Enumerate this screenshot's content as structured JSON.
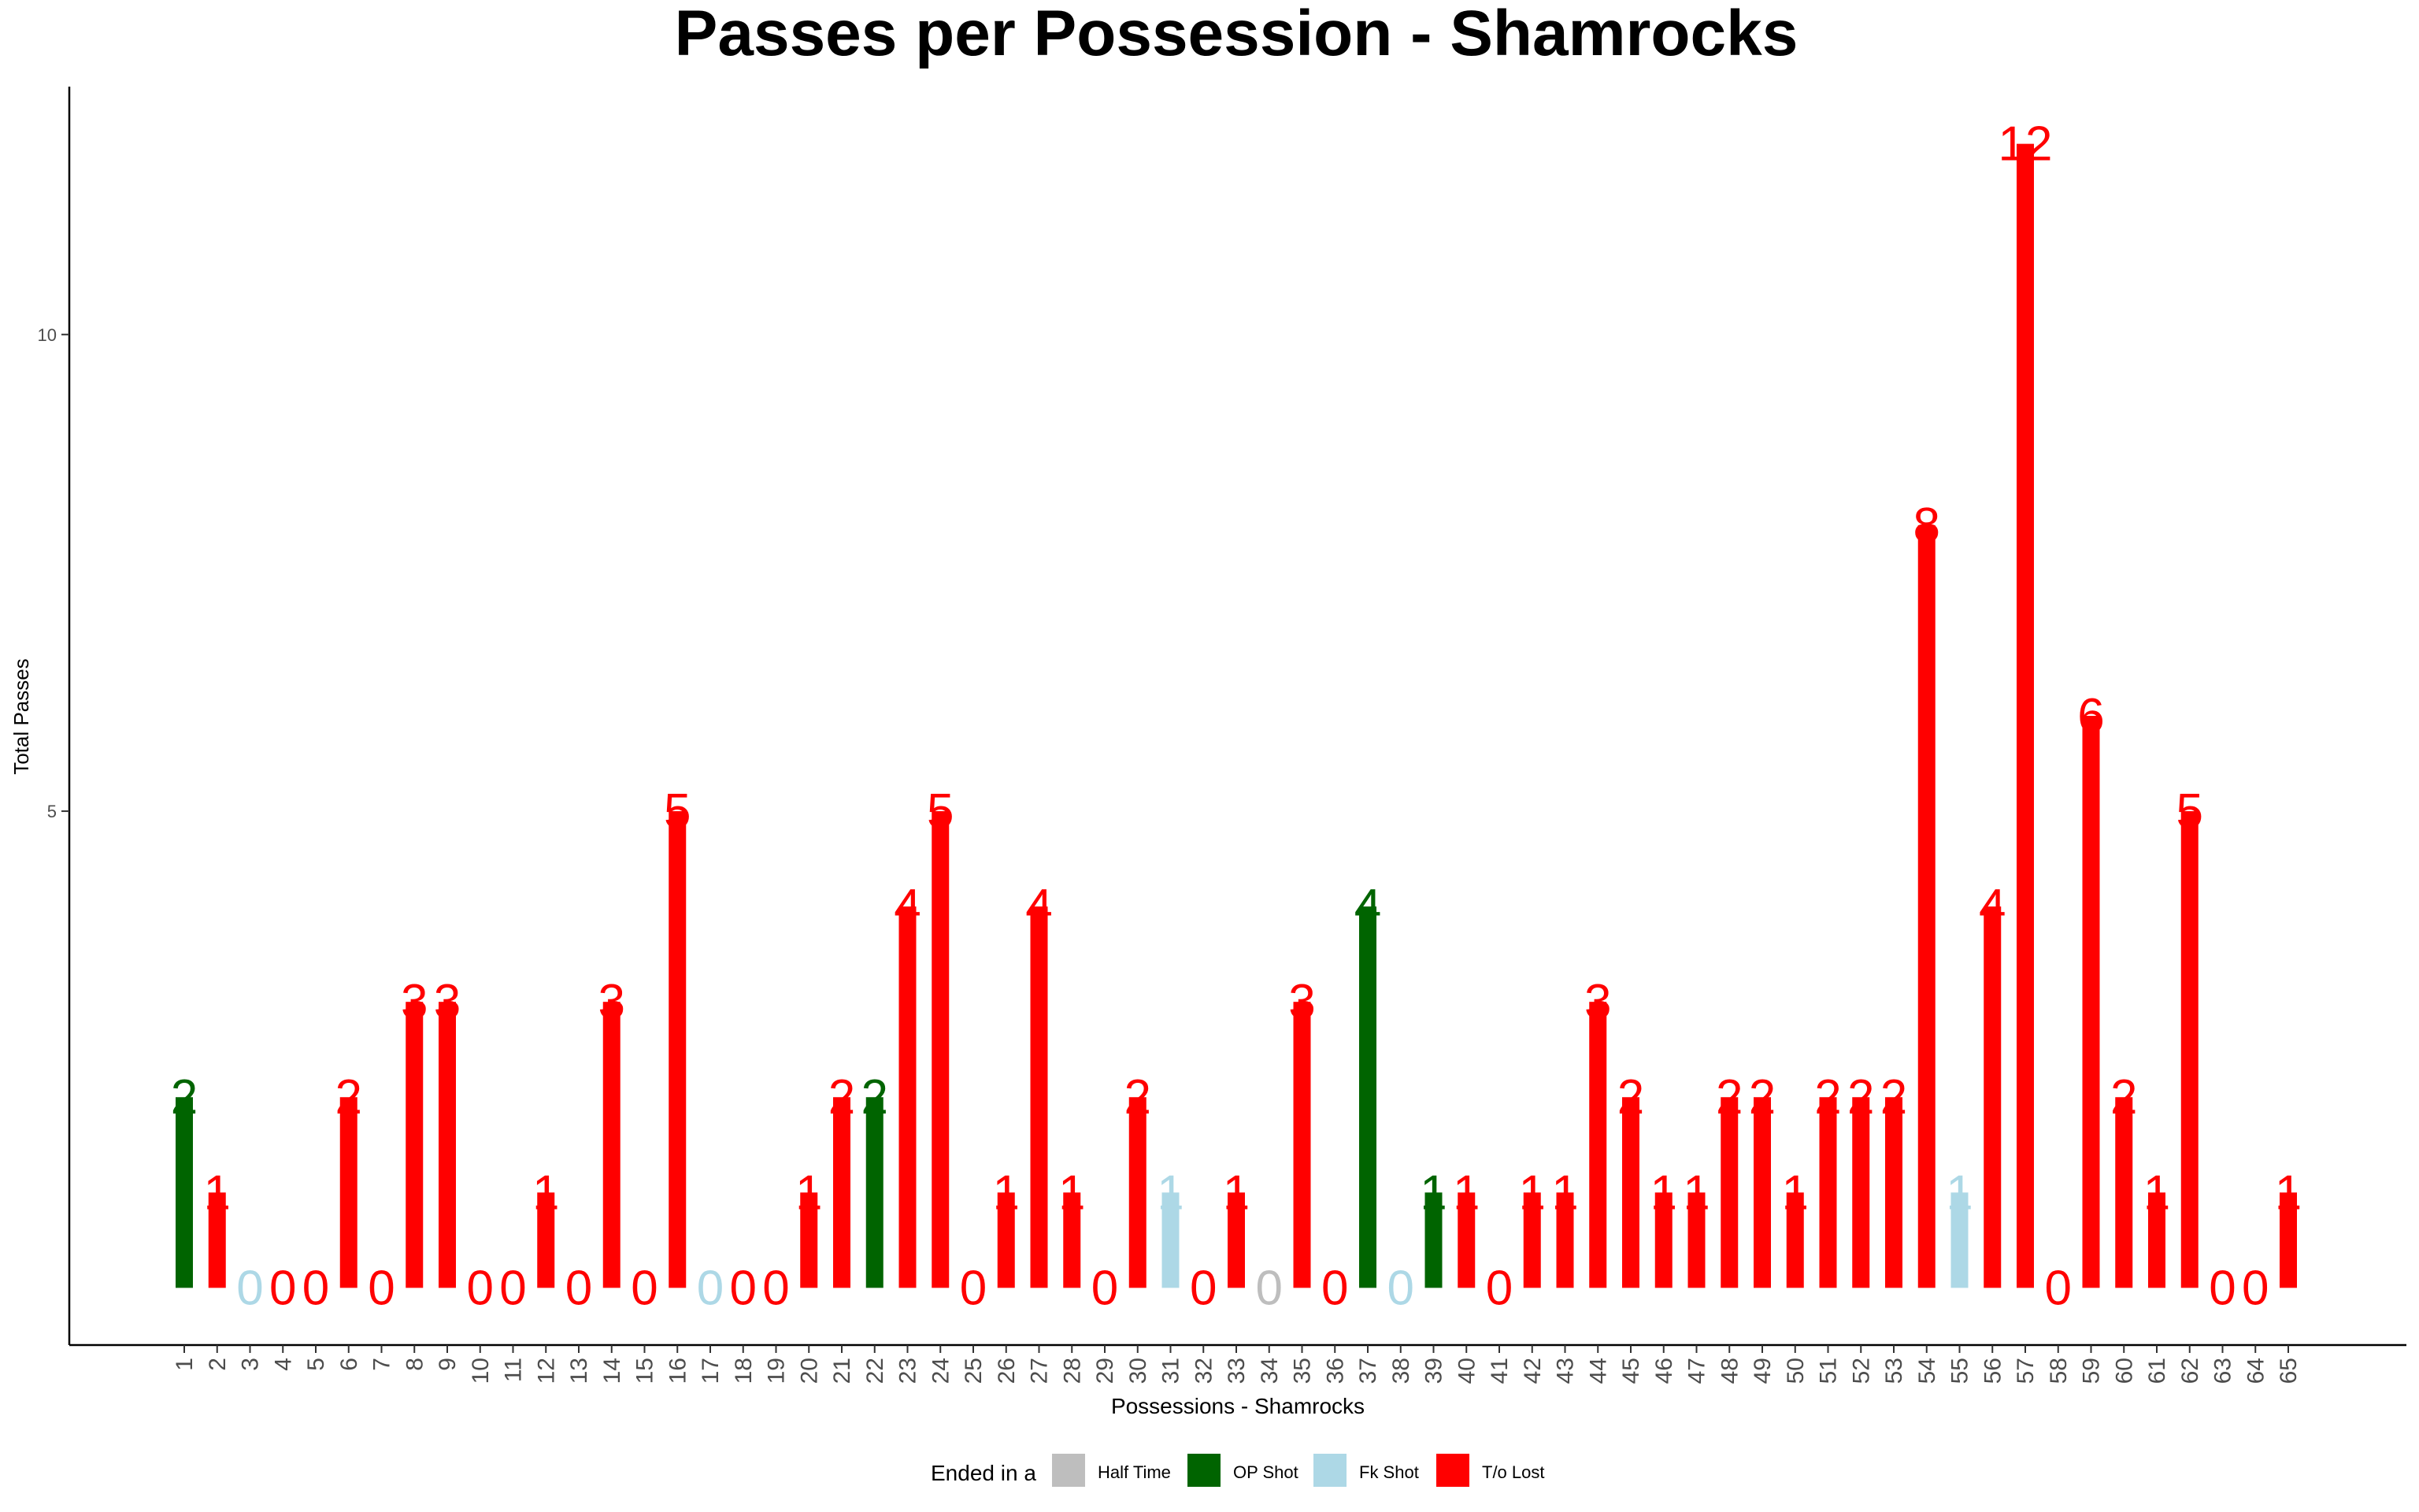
{
  "chart_data": {
    "type": "bar",
    "title": "Passes per Possession - Shamrocks",
    "xlabel": "Possessions - Shamrocks",
    "ylabel": "Total Passes",
    "ylim": [
      -0.6,
      12.6
    ],
    "yticks": [
      5,
      10
    ],
    "grid": false,
    "legend": {
      "title": "Ended in a",
      "placement": "bottom",
      "entries": [
        {
          "key": "half_time",
          "label": "Half Time",
          "color": "#BEBEBE"
        },
        {
          "key": "op_shot",
          "label": "OP Shot",
          "color": "#006400"
        },
        {
          "key": "fk_shot",
          "label": "Fk Shot",
          "color": "#ADD8E6"
        },
        {
          "key": "to_lost",
          "label": "T/o Lost",
          "color": "#FF0000"
        }
      ]
    },
    "categories": [
      "1",
      "2",
      "3",
      "4",
      "5",
      "6",
      "7",
      "8",
      "9",
      "10",
      "11",
      "12",
      "13",
      "14",
      "15",
      "16",
      "17",
      "18",
      "19",
      "20",
      "21",
      "22",
      "23",
      "24",
      "25",
      "26",
      "27",
      "28",
      "29",
      "30",
      "31",
      "32",
      "33",
      "34",
      "35",
      "36",
      "37",
      "38",
      "39",
      "40",
      "41",
      "42",
      "43",
      "44",
      "45",
      "46",
      "47",
      "48",
      "49",
      "50",
      "51",
      "52",
      "53",
      "54",
      "55",
      "56",
      "57",
      "58",
      "59",
      "60",
      "61",
      "62",
      "63",
      "64",
      "65"
    ],
    "values": [
      2,
      1,
      0,
      0,
      0,
      2,
      0,
      3,
      3,
      0,
      0,
      1,
      0,
      3,
      0,
      5,
      0,
      0,
      0,
      1,
      2,
      2,
      4,
      5,
      0,
      1,
      4,
      1,
      0,
      2,
      1,
      0,
      1,
      0,
      3,
      0,
      4,
      0,
      1,
      1,
      0,
      1,
      1,
      3,
      2,
      1,
      1,
      2,
      2,
      1,
      2,
      2,
      2,
      8,
      1,
      4,
      12,
      0,
      6,
      2,
      1,
      5,
      0,
      0,
      1
    ],
    "outcome": [
      "op_shot",
      "to_lost",
      "fk_shot",
      "to_lost",
      "to_lost",
      "to_lost",
      "to_lost",
      "to_lost",
      "to_lost",
      "to_lost",
      "to_lost",
      "to_lost",
      "to_lost",
      "to_lost",
      "to_lost",
      "to_lost",
      "fk_shot",
      "to_lost",
      "to_lost",
      "to_lost",
      "to_lost",
      "op_shot",
      "to_lost",
      "to_lost",
      "to_lost",
      "to_lost",
      "to_lost",
      "to_lost",
      "to_lost",
      "to_lost",
      "fk_shot",
      "to_lost",
      "to_lost",
      "half_time",
      "to_lost",
      "to_lost",
      "op_shot",
      "fk_shot",
      "op_shot",
      "to_lost",
      "to_lost",
      "to_lost",
      "to_lost",
      "to_lost",
      "to_lost",
      "to_lost",
      "to_lost",
      "to_lost",
      "to_lost",
      "to_lost",
      "to_lost",
      "to_lost",
      "to_lost",
      "to_lost",
      "fk_shot",
      "to_lost",
      "to_lost",
      "to_lost",
      "to_lost",
      "to_lost",
      "to_lost",
      "to_lost",
      "to_lost",
      "to_lost",
      "to_lost"
    ]
  }
}
